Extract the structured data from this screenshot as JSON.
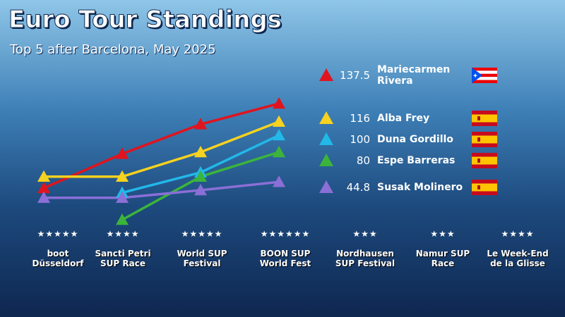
{
  "chart_data": {
    "type": "line",
    "title": "Euro Tour Standings",
    "subtitle": "Top 5 after Barcelona, May 2025",
    "categories": [
      "boot Düsseldorf",
      "Sancti Petri SUP Race",
      "World SUP Festival",
      "BOON SUP World Fest",
      "Nordhausen SUP Festival",
      "Namur SUP Race",
      "Le Week-End de la Glisse"
    ],
    "stars": [
      5,
      4,
      5,
      6,
      3,
      3,
      4
    ],
    "ylim": [
      0,
      140
    ],
    "series": [
      {
        "name": "Mariecarmen Rivera",
        "color": "#e0141e",
        "values": [
          37.5,
          78,
          113,
          137.5,
          null,
          null,
          null
        ]
      },
      {
        "name": "Alba Frey",
        "color": "#f7d21e",
        "values": [
          51,
          51,
          80,
          116,
          null,
          null,
          null
        ]
      },
      {
        "name": "Duna Gordillo",
        "color": "#22b8e8",
        "values": [
          null,
          32,
          56,
          100,
          null,
          null,
          null
        ]
      },
      {
        "name": "Espe Barreras",
        "color": "#3cb43c",
        "values": [
          null,
          0,
          51,
          80,
          null,
          null,
          null
        ]
      },
      {
        "name": "Susak Molinero",
        "color": "#8a6fd6",
        "values": [
          26,
          26,
          35,
          44.8,
          null,
          null,
          null
        ]
      }
    ]
  }
}
